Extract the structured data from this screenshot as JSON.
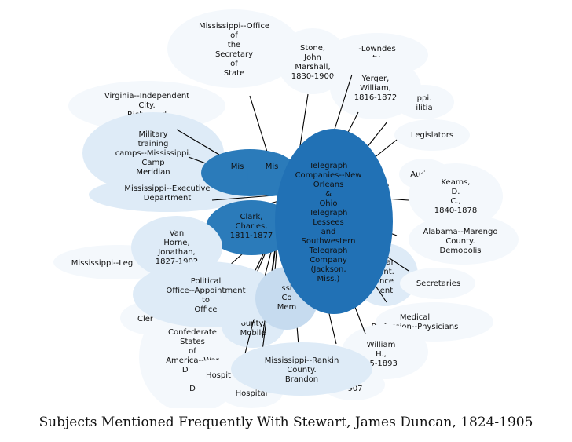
{
  "title": "Subjects Mentioned Frequently With Stewart, James Duncan, 1824-1905",
  "colors": {
    "center": "#2171b5",
    "dark": "#2b7bba",
    "mid": "#c6dbef",
    "light": "#deebf7",
    "pale": "#f4f8fc",
    "edge": "#000000",
    "text": "#111111"
  },
  "center": {
    "name": "telegraph-companies",
    "lines": [
      "Telegraph",
      "Companies--New",
      "Orleans",
      "&",
      "Ohio",
      "Telegraph",
      "Lessees",
      "and",
      "Southwestern",
      "Telegraph",
      "Company",
      "(Jackson,",
      "Miss.)"
    ]
  },
  "nodes": [
    {
      "name": "mississippi-office-secretary-of-state",
      "shade": "pale",
      "lines": [
        "Mississippi--Office",
        "of",
        "the",
        "Secretary",
        "of",
        "State"
      ]
    },
    {
      "name": "lowndes-county",
      "shade": "pale",
      "lines": [
        "-Lowndes",
        "ty."
      ]
    },
    {
      "name": "stone-john-marshall",
      "shade": "pale",
      "lines": [
        "Stone,",
        "John",
        "Marshall,",
        "1830-1900"
      ]
    },
    {
      "name": "yerger-william",
      "shade": "pale",
      "lines": [
        "Yerger,",
        "William,",
        "1816-1872"
      ]
    },
    {
      "name": "mississippi-militia",
      "shade": "pale",
      "lines": [
        "ppi.",
        "ilitia"
      ]
    },
    {
      "name": "virginia-richmond",
      "shade": "pale",
      "lines": [
        "Virginia--Independent",
        "City.",
        "Richmond"
      ]
    },
    {
      "name": "legislators",
      "shade": "pale",
      "lines": [
        "Legislators"
      ]
    },
    {
      "name": "military-training-camps",
      "shade": "light",
      "lines": [
        "Military",
        "training",
        "camps--Mississippi.",
        "Camp",
        "Meridian"
      ]
    },
    {
      "name": "auditors",
      "shade": "pale",
      "lines": [
        "Aud"
      ]
    },
    {
      "name": "kearns-d-c",
      "shade": "pale",
      "lines": [
        "Kearns,",
        "D.",
        "C.,",
        "1840-1878"
      ]
    },
    {
      "name": "mississippi-executive-department",
      "shade": "light",
      "lines": [
        "Mississippi--Executive",
        "Department"
      ]
    },
    {
      "name": "mississippi-governor",
      "shade": "dark",
      "lines": [
        "Mis"
      ]
    },
    {
      "name": "mississippi-military",
      "shade": "dark",
      "lines": [
        "Mis"
      ]
    },
    {
      "name": "clark-charles",
      "shade": "dark",
      "lines": [
        "Clark,",
        "Charles,",
        "1811-1877"
      ]
    },
    {
      "name": "mississippi-state",
      "shade": "mid",
      "lines": [
        "ate"
      ]
    },
    {
      "name": "alabama-marengo-demopolis",
      "shade": "pale",
      "lines": [
        "Alabama--Marengo",
        "County.",
        "Demopolis"
      ]
    },
    {
      "name": "van-horne-jonathan",
      "shade": "light",
      "lines": [
        "Van",
        "Horne,",
        "Jonathan,",
        "1827-1902"
      ]
    },
    {
      "name": "mississippi-legislature",
      "shade": "pale",
      "lines": [
        "Mississippi--Leg"
      ]
    },
    {
      "name": "war-department-intelligence",
      "shade": "light",
      "lines": [
        "War",
        "ent.",
        "nce",
        "ent"
      ]
    },
    {
      "name": "secretaries",
      "shade": "pale",
      "lines": [
        "Secretaries"
      ]
    },
    {
      "name": "political-office-appointment",
      "shade": "light",
      "lines": [
        "Political",
        "Office--Appointment",
        "to",
        "Office"
      ]
    },
    {
      "name": "mississippi-members",
      "shade": "mid",
      "lines": [
        "ssi",
        "Co",
        "Mem"
      ]
    },
    {
      "name": "clerks",
      "shade": "pale",
      "lines": [
        "Cler"
      ]
    },
    {
      "name": "medical-profession-physicians",
      "shade": "pale",
      "lines": [
        "Medical",
        "Profession--Physicians"
      ]
    },
    {
      "name": "confederate-war-department",
      "shade": "pale",
      "lines": [
        "Confederate",
        "States",
        "of",
        "America--War",
        "Depa",
        "O",
        "D"
      ]
    },
    {
      "name": "alabama-mobile",
      "shade": "light",
      "lines": [
        "ounty.",
        "Mobile"
      ]
    },
    {
      "name": "william-h",
      "shade": "pale",
      "lines": [
        "William",
        "H.,",
        "15-1893"
      ]
    },
    {
      "name": "hospitals-a",
      "shade": "pale",
      "lines": [
        "Hospit"
      ]
    },
    {
      "name": "hospitals-b",
      "shade": "pale",
      "lines": [
        "Hospital"
      ]
    },
    {
      "name": "mississippi-rankin-brandon",
      "shade": "light",
      "lines": [
        "Mississippi--Rankin",
        "County.",
        "Brandon"
      ]
    },
    {
      "name": "person-1907",
      "shade": "pale",
      "lines": [
        "907"
      ]
    }
  ]
}
